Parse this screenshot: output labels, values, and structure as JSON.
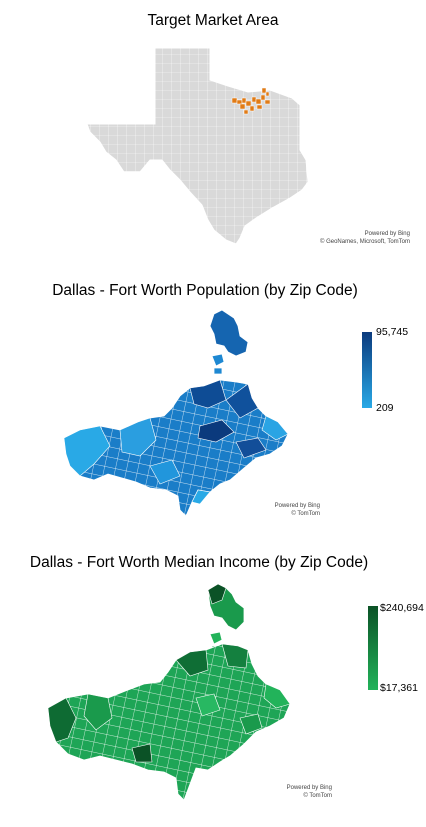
{
  "maps": {
    "texas": {
      "title": "Target Market Area",
      "attribution_line1": "Powered by Bing",
      "attribution_line2": "© GeoNames, Microsoft, TomTom",
      "colors": {
        "state": "#d9d9d9",
        "border": "#ffffff",
        "highlight": "#e07b16"
      }
    },
    "population": {
      "title": "Dallas - Fort Worth Population (by Zip Code)",
      "legend_max": "95,745",
      "legend_min": "209",
      "attribution_line1": "Powered by Bing",
      "attribution_line2": "© TomTom",
      "colors": {
        "low": "#29a9e6",
        "high": "#0b3a7d",
        "border": "#ffffff"
      }
    },
    "income": {
      "title": "Dallas - Fort Worth Median Income (by Zip Code)",
      "legend_max": "$240,694",
      "legend_min": "$17,361",
      "attribution_line1": "Powered by Bing",
      "attribution_line2": "© TomTom",
      "colors": {
        "low": "#22b35a",
        "high": "#0b5226",
        "border": "#ffffff"
      }
    }
  }
}
